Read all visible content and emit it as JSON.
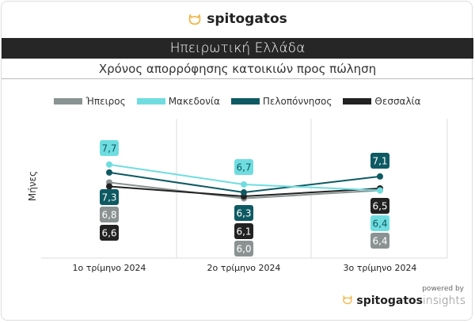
{
  "brand": {
    "name": "spitogatos",
    "powered_by": "powered by",
    "insights": "insights",
    "accent": "#f2b84b"
  },
  "header": {
    "title": "Ηπειρωτική Ελλάδα",
    "subtitle": "Χρόνος απορρόφησης κατοικιών προς πώληση"
  },
  "chart_data": {
    "type": "line",
    "title": "Χρόνος απορρόφησης κατοικιών προς πώληση",
    "ylabel": "Μήνες",
    "xlabel": "",
    "categories": [
      "1ο τρίμηνο 2024",
      "2ο τρίμηνο 2024",
      "3ο τρίμηνο 2024"
    ],
    "ylim": [
      3,
      10
    ],
    "grid": "vertical",
    "legend": "top",
    "series": [
      {
        "name": "Ήπειρος",
        "color": "#8a9292",
        "values": [
          6.8,
          6.0,
          6.4
        ],
        "labels": [
          "6,8",
          "6,0",
          "6,4"
        ]
      },
      {
        "name": "Μακεδονία",
        "color": "#6fdde0",
        "values": [
          7.7,
          6.7,
          6.4
        ],
        "labels": [
          "7,7",
          "6,7",
          "6,4"
        ]
      },
      {
        "name": "Πελοπόννησος",
        "color": "#0e5a63",
        "values": [
          7.3,
          6.3,
          7.1
        ],
        "labels": [
          "7,3",
          "6,3",
          "7,1"
        ]
      },
      {
        "name": "Θεσσαλία",
        "color": "#222222",
        "values": [
          6.6,
          6.1,
          6.5
        ],
        "labels": [
          "6,6",
          "6,1",
          "6,5"
        ]
      }
    ]
  }
}
